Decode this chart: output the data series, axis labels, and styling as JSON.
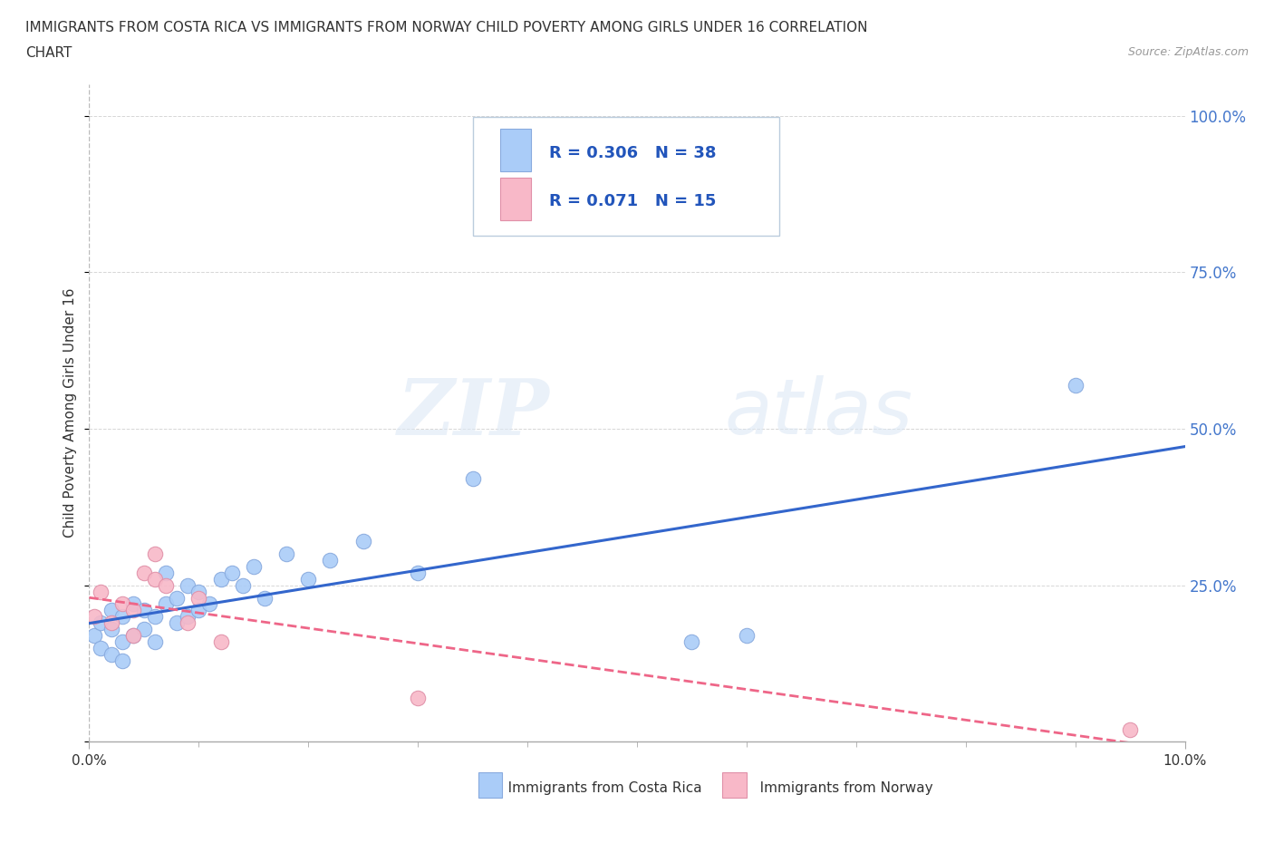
{
  "title_line1": "IMMIGRANTS FROM COSTA RICA VS IMMIGRANTS FROM NORWAY CHILD POVERTY AMONG GIRLS UNDER 16 CORRELATION",
  "title_line2": "CHART",
  "source": "Source: ZipAtlas.com",
  "ylabel": "Child Poverty Among Girls Under 16",
  "xlim": [
    0.0,
    0.1
  ],
  "ylim": [
    0.0,
    1.05
  ],
  "yticks": [
    0.0,
    0.25,
    0.5,
    0.75,
    1.0
  ],
  "ytick_labels": [
    "",
    "25.0%",
    "50.0%",
    "75.0%",
    "100.0%"
  ],
  "costa_rica_color": "#aaccf8",
  "costa_rica_edge": "#88aade",
  "norway_color": "#f8b8c8",
  "norway_edge": "#e090a8",
  "line_costa_rica": "#3366cc",
  "line_norway": "#ee6688",
  "r_costa_rica": 0.306,
  "n_costa_rica": 38,
  "r_norway": 0.071,
  "n_norway": 15,
  "watermark_zip": "ZIP",
  "watermark_atlas": "atlas",
  "costa_rica_x": [
    0.0005,
    0.001,
    0.001,
    0.002,
    0.002,
    0.002,
    0.003,
    0.003,
    0.003,
    0.004,
    0.004,
    0.005,
    0.005,
    0.006,
    0.006,
    0.007,
    0.007,
    0.008,
    0.008,
    0.009,
    0.009,
    0.01,
    0.01,
    0.011,
    0.012,
    0.013,
    0.014,
    0.015,
    0.016,
    0.018,
    0.02,
    0.022,
    0.025,
    0.03,
    0.035,
    0.055,
    0.06,
    0.09
  ],
  "costa_rica_y": [
    0.17,
    0.15,
    0.19,
    0.14,
    0.18,
    0.21,
    0.16,
    0.2,
    0.13,
    0.17,
    0.22,
    0.18,
    0.21,
    0.16,
    0.2,
    0.22,
    0.27,
    0.19,
    0.23,
    0.2,
    0.25,
    0.21,
    0.24,
    0.22,
    0.26,
    0.27,
    0.25,
    0.28,
    0.23,
    0.3,
    0.26,
    0.29,
    0.32,
    0.27,
    0.42,
    0.16,
    0.17,
    0.57
  ],
  "norway_x": [
    0.0005,
    0.001,
    0.002,
    0.003,
    0.004,
    0.004,
    0.005,
    0.006,
    0.006,
    0.007,
    0.009,
    0.01,
    0.012,
    0.03,
    0.095
  ],
  "norway_y": [
    0.2,
    0.24,
    0.19,
    0.22,
    0.17,
    0.21,
    0.27,
    0.26,
    0.3,
    0.25,
    0.19,
    0.23,
    0.16,
    0.07,
    0.02
  ]
}
